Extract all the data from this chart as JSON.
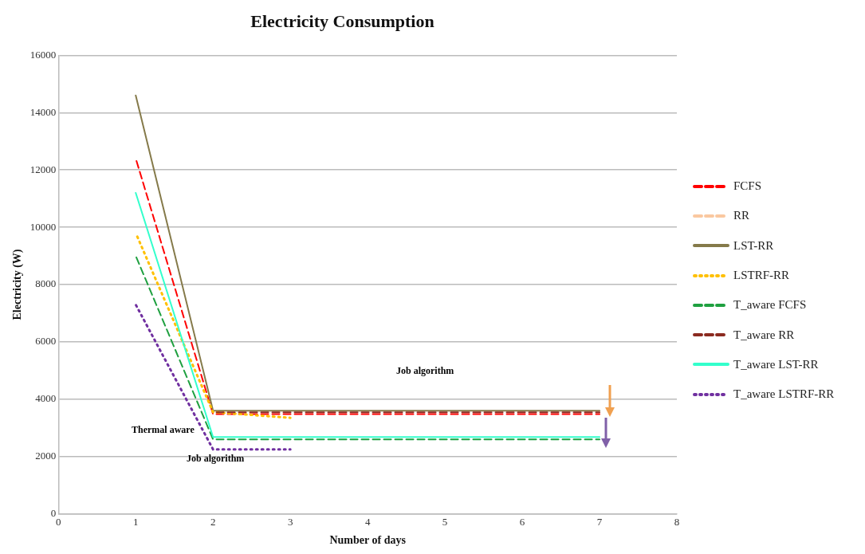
{
  "chart_data": {
    "type": "line",
    "title": "Electricity Consumption",
    "xlabel": "Number of days",
    "ylabel": "Electricity (W)",
    "x": [
      1,
      2,
      3,
      4,
      5,
      6,
      7
    ],
    "series": [
      {
        "name": "FCFS",
        "color": "#ff0000",
        "line_style": "dashed",
        "values": [
          12400,
          3480,
          3480,
          3480,
          3480,
          3480,
          3480
        ]
      },
      {
        "name": "RR",
        "color": "#fac8a0",
        "line_style": "dashed",
        "values": [
          null,
          null,
          null,
          null,
          null,
          null,
          null
        ]
      },
      {
        "name": "LST-RR",
        "color": "#857a4a",
        "line_style": "solid",
        "values": [
          14600,
          3600,
          3600,
          3600,
          3600,
          3600,
          3600
        ]
      },
      {
        "name": "LSTRF-RR",
        "color": "#ffc000",
        "line_style": "dotted",
        "values": [
          9800,
          3550,
          3350,
          null,
          null,
          null,
          null
        ]
      },
      {
        "name": "T_aware  FCFS",
        "color": "#1fa040",
        "line_style": "dashed",
        "values": [
          9000,
          2600,
          2600,
          2600,
          2600,
          2600,
          2600
        ]
      },
      {
        "name": "T_aware  RR",
        "color": "#8b2a20",
        "line_style": "dashed",
        "values": [
          null,
          3540,
          3540,
          3540,
          3540,
          3540,
          3540
        ]
      },
      {
        "name": "T_aware  LST-RR",
        "color": "#33ffcc",
        "line_style": "solid",
        "values": [
          11200,
          2680,
          2680,
          2680,
          2680,
          2680,
          2680
        ]
      },
      {
        "name": "T_aware LSTRF-RR",
        "color": "#7030a0",
        "line_style": "dotted",
        "values": [
          7300,
          2250,
          2250,
          null,
          null,
          null,
          null
        ]
      }
    ],
    "xlim": [
      0,
      8
    ],
    "xticks": [
      0,
      1,
      2,
      3,
      4,
      5,
      6,
      7,
      8
    ],
    "ylim": [
      0,
      16000
    ],
    "yticks": [
      0,
      2000,
      4000,
      6000,
      8000,
      10000,
      12000,
      14000,
      16000
    ],
    "grid": "y",
    "legend": "right",
    "marker": "none",
    "annotations": [
      "Job algorithm",
      "Thermal aware",
      "Job algorithm"
    ]
  }
}
